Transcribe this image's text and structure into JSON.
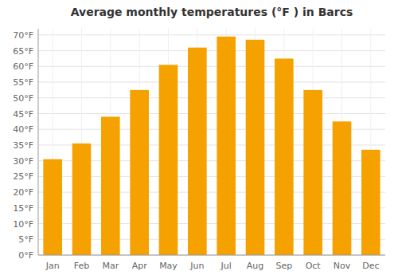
{
  "chart_data": {
    "type": "bar",
    "title": "Average monthly temperatures (°F ) in Barcs",
    "categories": [
      "Jan",
      "Feb",
      "Mar",
      "Apr",
      "May",
      "Jun",
      "Jul",
      "Aug",
      "Sep",
      "Oct",
      "Nov",
      "Dec"
    ],
    "values": [
      30.5,
      35.5,
      44.0,
      52.5,
      60.5,
      66.0,
      69.5,
      68.5,
      62.5,
      52.5,
      42.5,
      33.5
    ],
    "color": "#F5A200",
    "ylim": [
      0,
      72
    ],
    "yticks": [
      {
        "value": 0,
        "label": "0°F"
      },
      {
        "value": 5,
        "label": "5°F"
      },
      {
        "value": 10,
        "label": "10°F"
      },
      {
        "value": 15,
        "label": "15°F"
      },
      {
        "value": 20,
        "label": "20°F"
      },
      {
        "value": 25,
        "label": "25°F"
      },
      {
        "value": 30,
        "label": "30°F"
      },
      {
        "value": 35,
        "label": "35°F"
      },
      {
        "value": 40,
        "label": "40°F"
      },
      {
        "value": 45,
        "label": "45°F"
      },
      {
        "value": 50,
        "label": "50°F"
      },
      {
        "value": 55,
        "label": "55°F"
      },
      {
        "value": 60,
        "label": "60°F"
      },
      {
        "value": 65,
        "label": "65°F"
      },
      {
        "value": 70,
        "label": "70°F"
      }
    ],
    "grid": true
  }
}
